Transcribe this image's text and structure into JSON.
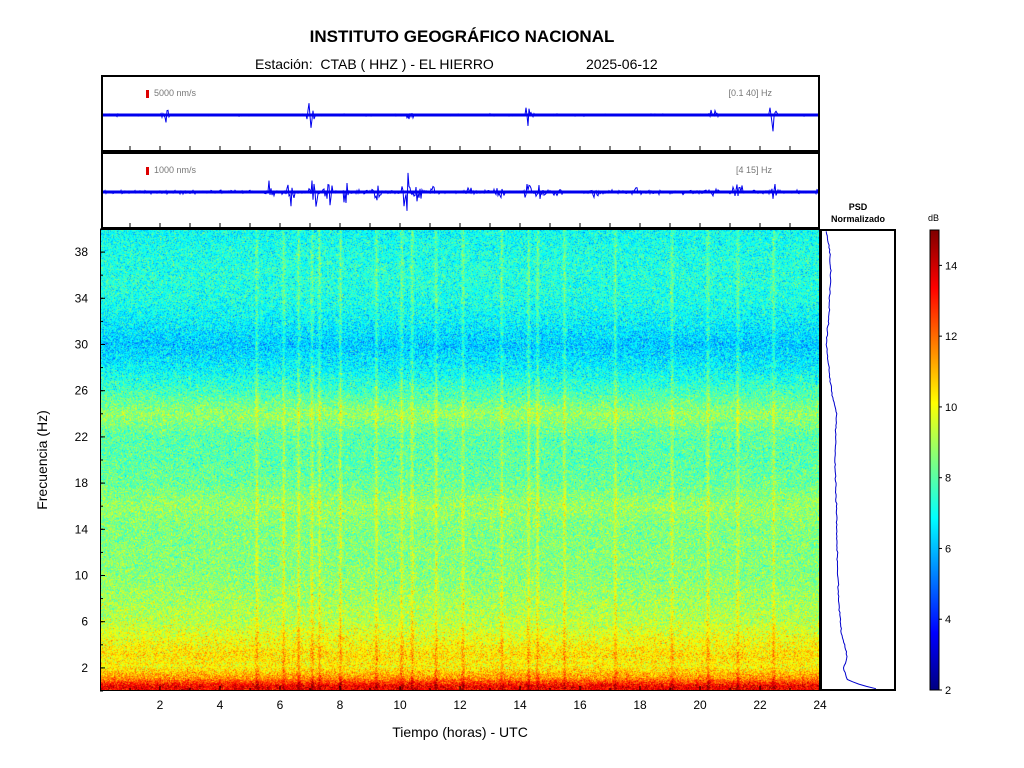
{
  "header": {
    "title": "INSTITUTO GEOGRÁFICO NACIONAL",
    "station": "Estación:  CTAB ( HHZ ) - EL HIERRO",
    "date": "2025-06-12"
  },
  "traces": [
    {
      "scale": "5000 nm/s",
      "band": "[0.1 40] Hz"
    },
    {
      "scale": "1000 nm/s",
      "band": "[4 15] Hz"
    }
  ],
  "psd": {
    "title_line1": "PSD",
    "title_line2": "Normalizado"
  },
  "colorbar": {
    "unit": "dB",
    "ticks": [
      2,
      4,
      6,
      8,
      10,
      12,
      14
    ],
    "range": [
      2,
      15
    ]
  },
  "colors": {
    "trace": "#0000ee",
    "scale_bar": "#dd0000",
    "psd_line": "#0000cc"
  },
  "chart_data": {
    "type": "heatmap",
    "title": "INSTITUTO GEOGRÁFICO NACIONAL",
    "xlabel": "Tiempo (horas) - UTC",
    "ylabel": "Frecuencia  (Hz)",
    "xlim": [
      0,
      24
    ],
    "ylim": [
      0,
      40
    ],
    "xticks": [
      2,
      4,
      6,
      8,
      10,
      12,
      14,
      16,
      18,
      20,
      22,
      24
    ],
    "yticks": [
      2,
      6,
      10,
      14,
      18,
      22,
      26,
      30,
      34,
      38
    ],
    "colormap": "jet",
    "zlim_db": [
      2,
      15
    ],
    "background_profile_db": [
      {
        "f": 0.3,
        "db": 13.5
      },
      {
        "f": 1,
        "db": 11.5
      },
      {
        "f": 2,
        "db": 10.2
      },
      {
        "f": 3,
        "db": 10.5
      },
      {
        "f": 6,
        "db": 9.2
      },
      {
        "f": 10,
        "db": 8.6
      },
      {
        "f": 14,
        "db": 8.5
      },
      {
        "f": 16,
        "db": 8.8
      },
      {
        "f": 18,
        "db": 8.2
      },
      {
        "f": 20,
        "db": 8.0
      },
      {
        "f": 22,
        "db": 8.0
      },
      {
        "f": 24,
        "db": 8.8
      },
      {
        "f": 26,
        "db": 7.7
      },
      {
        "f": 28,
        "db": 6.8
      },
      {
        "f": 30,
        "db": 6.2
      },
      {
        "f": 32,
        "db": 6.8
      },
      {
        "f": 34,
        "db": 7.2
      },
      {
        "f": 36,
        "db": 7.3
      },
      {
        "f": 38,
        "db": 7.2
      },
      {
        "f": 40,
        "db": 7.0
      }
    ],
    "events_hours": [
      5.2,
      6.1,
      6.6,
      7.05,
      7.3,
      8.0,
      9.2,
      10.05,
      10.4,
      11.2,
      12.1,
      13.4,
      14.3,
      14.6,
      15.5,
      17.2,
      19.1,
      20.3,
      21.3,
      22.5
    ],
    "trace1_events": [
      {
        "t": 2.1,
        "a": 0.5
      },
      {
        "t": 7.0,
        "a": 1.0
      },
      {
        "t": 10.3,
        "a": 0.6
      },
      {
        "t": 14.3,
        "a": 0.6
      },
      {
        "t": 20.5,
        "a": 0.4
      },
      {
        "t": 22.5,
        "a": 0.7
      }
    ],
    "trace2_events": [
      {
        "t": 5.6,
        "a": 0.8
      },
      {
        "t": 6.3,
        "a": 1.0
      },
      {
        "t": 7.1,
        "a": 1.0
      },
      {
        "t": 7.6,
        "a": 0.8
      },
      {
        "t": 8.1,
        "a": 0.9
      },
      {
        "t": 9.2,
        "a": 0.4
      },
      {
        "t": 10.2,
        "a": 1.0
      },
      {
        "t": 10.6,
        "a": 0.8
      },
      {
        "t": 11.1,
        "a": 0.5
      },
      {
        "t": 12.3,
        "a": 0.4
      },
      {
        "t": 13.3,
        "a": 0.7
      },
      {
        "t": 14.3,
        "a": 0.8
      },
      {
        "t": 14.7,
        "a": 0.6
      },
      {
        "t": 15.3,
        "a": 0.4
      },
      {
        "t": 16.5,
        "a": 0.4
      },
      {
        "t": 17.9,
        "a": 0.3
      },
      {
        "t": 20.4,
        "a": 0.4
      },
      {
        "t": 21.3,
        "a": 0.9
      },
      {
        "t": 22.5,
        "a": 0.5
      }
    ],
    "psd_profile": [
      {
        "f": 0.2,
        "v": 0.75
      },
      {
        "f": 0.5,
        "v": 0.55
      },
      {
        "f": 1.0,
        "v": 0.35
      },
      {
        "f": 2.0,
        "v": 0.3
      },
      {
        "f": 3.0,
        "v": 0.35
      },
      {
        "f": 5.0,
        "v": 0.27
      },
      {
        "f": 8.0,
        "v": 0.23
      },
      {
        "f": 12.0,
        "v": 0.21
      },
      {
        "f": 16.0,
        "v": 0.2
      },
      {
        "f": 20.0,
        "v": 0.18
      },
      {
        "f": 24.0,
        "v": 0.2
      },
      {
        "f": 26.0,
        "v": 0.13
      },
      {
        "f": 30.0,
        "v": 0.06
      },
      {
        "f": 33.0,
        "v": 0.1
      },
      {
        "f": 36.0,
        "v": 0.12
      },
      {
        "f": 38.0,
        "v": 0.11
      },
      {
        "f": 40.0,
        "v": 0.05
      }
    ]
  }
}
